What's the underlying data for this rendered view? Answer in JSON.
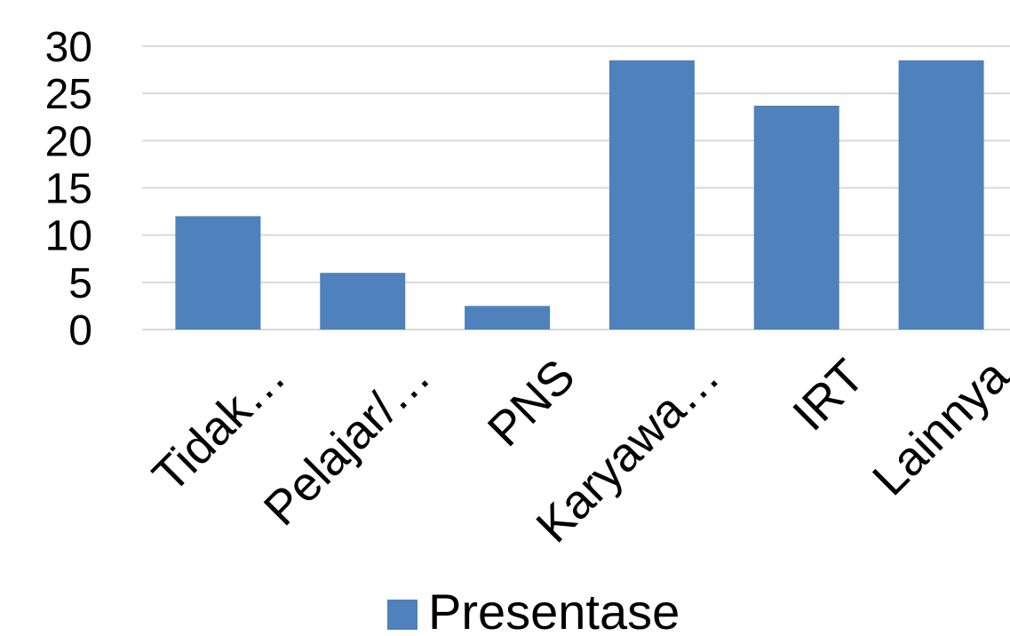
{
  "chart_data": {
    "type": "bar",
    "categories": [
      "Tidak…",
      "Pelajar/…",
      "PNS",
      "Karyawa…",
      "IRT",
      "Lainnya"
    ],
    "series": [
      {
        "name": "Presentase",
        "values": [
          12,
          6,
          2.5,
          28.5,
          23.7,
          28.5
        ]
      }
    ],
    "title": "",
    "xlabel": "",
    "ylabel": "",
    "ylim": [
      0,
      30
    ],
    "yticks": [
      "0",
      "5",
      "10",
      "15",
      "20",
      "25",
      "30"
    ],
    "grid": true,
    "legend": "bottom",
    "colors": {
      "bar": "#4f81bd",
      "grid": "#d9d9d9"
    }
  }
}
